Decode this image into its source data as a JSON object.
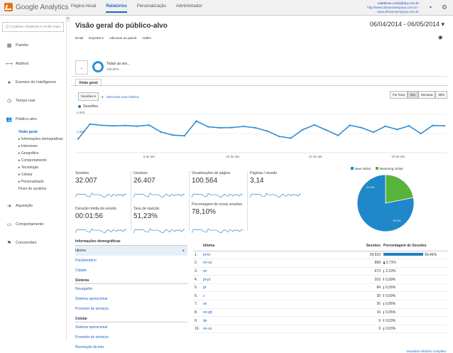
{
  "app": {
    "logo_text": "Google Analytics"
  },
  "topnav": [
    "Página inicial",
    "Relatórios",
    "Personalização",
    "Administrador"
  ],
  "account": {
    "email": "matthieus.rocha@ticy.com.br",
    "line2": "http://www.dimannaiespaua.com.br -",
    "line3": "www.dimannaiespaua.com.br"
  },
  "sidebar": {
    "search_placeholder": "Q Localizar relatórios e muito mais",
    "items_top": [
      {
        "label": "Painéis",
        "icon": "grid-icon"
      },
      {
        "label": "Atalhos",
        "icon": "arrows-icon"
      },
      {
        "label": "Eventos do Intelligence",
        "icon": "bulb-icon"
      },
      {
        "label": "Tempo real",
        "icon": "clock-icon"
      },
      {
        "label": "Público-alvo",
        "icon": "people-icon"
      }
    ],
    "sub": [
      "Visão geral",
      "▸ Informações demográficas",
      "▸ Interesses",
      "▸ Geográfico",
      "▸ Comportamento",
      "▸ Tecnologia",
      "▸ Celular",
      "▸ Personalizado",
      "Fluxo de usuários"
    ],
    "items_bottom": [
      {
        "label": "Aquisição",
        "icon": "acquisition-icon"
      },
      {
        "label": "Comportamento",
        "icon": "page-icon"
      },
      {
        "label": "Conversões",
        "icon": "flag-icon"
      }
    ]
  },
  "page": {
    "title": "Visão geral do público-alvo",
    "daterange": "06/04/2014 - 06/05/2014 ▾"
  },
  "toolbar": [
    "Email",
    "Exportar ▾",
    "Adicionar ao painel",
    "Atalho"
  ],
  "segment": {
    "name": "Todas as ses...",
    "pct": "100,00%"
  },
  "tab": "Visão geral",
  "controls": {
    "metric": "Sessões ▾",
    "vs": "X",
    "select_metric": "Selecione uma métrica",
    "granularity": [
      "Por hora",
      "Dia",
      "Semana",
      "Mês"
    ],
    "active": "Dia"
  },
  "legend": "Sessões",
  "chart_data": {
    "type": "line",
    "title": "",
    "series": [
      {
        "name": "Sessões",
        "values": [
          720,
          1490,
          1430,
          1400,
          1420,
          1380,
          1440,
          1080,
          920,
          880,
          1650,
          1350,
          1300,
          1310,
          1370,
          1300,
          1130,
          850,
          760,
          1200,
          1450,
          1180,
          900,
          1430,
          1300,
          1070,
          1380,
          1210,
          1400,
          1000,
          1420,
          1400
        ]
      }
    ],
    "xticks": [
      "8 de abr",
      "15 de abr",
      "22 de abr",
      "29 de abr"
    ],
    "yticks": [
      "2.000",
      "1.000"
    ],
    "ylim": [
      0,
      2000
    ]
  },
  "metrics": [
    {
      "label": "Sessões",
      "value": "32.007"
    },
    {
      "label": "Usuários",
      "value": "26.407"
    },
    {
      "label": "Visualizações de página",
      "value": "100.564"
    },
    {
      "label": "Páginas / sessão",
      "value": "3,14"
    },
    {
      "label": "Duração média da sessão",
      "value": "00:01:56"
    },
    {
      "label": "Taxa de rejeição",
      "value": "51,23%"
    },
    {
      "label": "Porcentagem de novas sessões",
      "value": "78,10%"
    }
  ],
  "pie": {
    "legend": [
      "New Visitor",
      "Returning Visitor"
    ],
    "values": [
      78.1,
      21.9
    ],
    "labels": [
      "78,1%",
      "21,9%"
    ],
    "colors": [
      "#1f88c9",
      "#58b33a"
    ]
  },
  "demos": {
    "header": "Informações demográficas",
    "rows1": [
      "Idioma",
      "País/território",
      "Cidade"
    ],
    "group2": "Sistema",
    "rows2": [
      "Navegador",
      "Sistema operacional",
      "Provedor de serviços"
    ],
    "group3": "Celular",
    "rows3": [
      "Sistema operacional",
      "Provedor de serviços",
      "Resolução da tela"
    ]
  },
  "table": {
    "headers": [
      "Idioma",
      "Sessões",
      "Porcentagem de Sessões"
    ],
    "rows": [
      {
        "n": "1.",
        "lang": "pt-br",
        "sessions": "29.915",
        "pct": "93,46%",
        "frac": 0.9346
      },
      {
        "n": "2.",
        "lang": "en-us",
        "sessions": "868",
        "pct": "2,71%",
        "frac": 0.0271
      },
      {
        "n": "3.",
        "lang": "en",
        "sessions": "673",
        "pct": "2,10%",
        "frac": 0.021
      },
      {
        "n": "4.",
        "lang": "pt-pt",
        "sessions": "316",
        "pct": "0,99%",
        "frac": 0.0099
      },
      {
        "n": "5.",
        "lang": "pt",
        "sessions": "84",
        "pct": "0,26%",
        "frac": 0.0026
      },
      {
        "n": "6.",
        "lang": "c",
        "sessions": "30",
        "pct": "0,09%",
        "frac": 0.0009
      },
      {
        "n": "7.",
        "lang": "es",
        "sessions": "20",
        "pct": "0,06%",
        "frac": 0.0006
      },
      {
        "n": "8.",
        "lang": "en-gb",
        "sessions": "16",
        "pct": "0,05%",
        "frac": 0.0005
      },
      {
        "n": "9.",
        "lang": "de",
        "sessions": "9",
        "pct": "0,03%",
        "frac": 0.0003
      },
      {
        "n": "10.",
        "lang": "es-us",
        "sessions": "9",
        "pct": "0,03%",
        "frac": 0.0003
      }
    ],
    "full_report": "visualizar relatório completo"
  }
}
